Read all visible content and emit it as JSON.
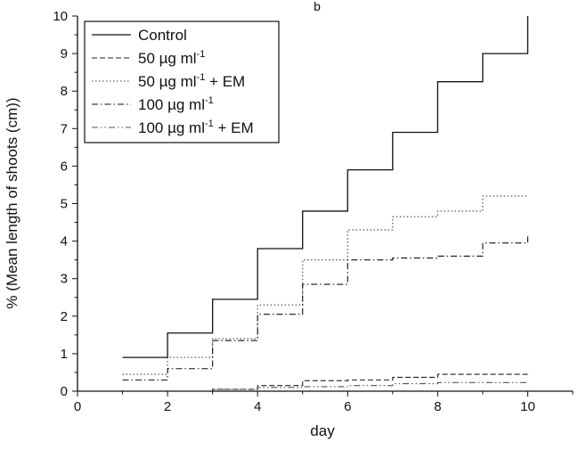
{
  "chart_data": {
    "type": "line",
    "step": true,
    "panel_label": "b",
    "xlabel": "day",
    "ylabel": "% (Mean length of shoots (cm))",
    "xlim": [
      0,
      11
    ],
    "ylim": [
      0,
      10
    ],
    "xticks": [
      0,
      2,
      4,
      6,
      8,
      10
    ],
    "yticks": [
      0,
      1,
      2,
      3,
      4,
      5,
      6,
      7,
      8,
      9,
      10
    ],
    "legend_position": "top-left",
    "x": [
      1,
      2,
      3,
      4,
      5,
      6,
      7,
      8,
      9,
      10
    ],
    "series": [
      {
        "name": "Control",
        "name_parts": [
          "Control",
          "",
          ""
        ],
        "line_style": "solid",
        "values": [
          0.9,
          1.55,
          2.45,
          3.8,
          4.8,
          5.9,
          6.9,
          8.25,
          9.0,
          10.0
        ]
      },
      {
        "name": "50 µg ml-1",
        "name_parts": [
          "50 µg ml",
          "-1",
          ""
        ],
        "line_style": "dashed",
        "values": [
          0.0,
          0.0,
          0.05,
          0.15,
          0.28,
          0.3,
          0.37,
          0.45,
          0.45,
          0.45
        ]
      },
      {
        "name": "50 µg ml-1 + EM",
        "name_parts": [
          "50 µg ml",
          "-1",
          " + EM"
        ],
        "line_style": "dotted",
        "values": [
          0.45,
          0.9,
          1.4,
          2.3,
          3.5,
          4.3,
          4.65,
          4.8,
          5.2,
          5.2
        ]
      },
      {
        "name": "100 µg ml-1",
        "name_parts": [
          "100 µg ml",
          "-1",
          ""
        ],
        "line_style": "dashdot",
        "values": [
          0.3,
          0.6,
          1.35,
          2.05,
          2.85,
          3.5,
          3.55,
          3.6,
          3.95,
          4.2
        ]
      },
      {
        "name": "100 µg ml-1 + EM",
        "name_parts": [
          "100 µg ml",
          "-1",
          " + EM"
        ],
        "line_style": "dashdotdot",
        "values": [
          0.0,
          0.0,
          0.05,
          0.1,
          0.12,
          0.15,
          0.2,
          0.23,
          0.23,
          0.23
        ]
      }
    ]
  }
}
